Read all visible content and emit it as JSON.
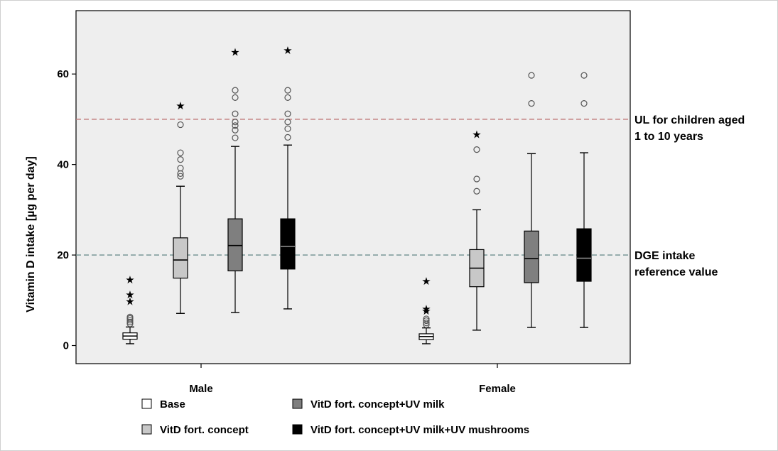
{
  "chart_data": {
    "type": "boxplot",
    "ylabel": "Vitamin D intake [µg per day]",
    "xlabel": "",
    "ylim": [
      -4,
      74
    ],
    "yticks": [
      0,
      20,
      40,
      60
    ],
    "grid": false,
    "categories": [
      "Male",
      "Female"
    ],
    "series": [
      {
        "name": "Base",
        "color": "#ffffff",
        "median_color": "#000000",
        "boxes": [
          {
            "q1": 1.4,
            "median": 2.1,
            "q3": 2.8,
            "lower_whisker": 0.4,
            "upper_whisker": 4.1,
            "outliers": [
              4.8,
              5.2,
              5.6,
              6.0,
              6.3
            ],
            "extremes": [
              9.7,
              11.2,
              14.5
            ]
          },
          {
            "q1": 1.3,
            "median": 2.0,
            "q3": 2.6,
            "lower_whisker": 0.4,
            "upper_whisker": 3.9,
            "outliers": [
              4.6,
              5.0,
              5.5,
              5.9
            ],
            "extremes": [
              7.6,
              8.1,
              14.2
            ]
          }
        ]
      },
      {
        "name": "VitD fort. concept",
        "color": "#c8c8c8",
        "median_color": "#000000",
        "boxes": [
          {
            "q1": 14.9,
            "median": 18.9,
            "q3": 23.8,
            "lower_whisker": 7.1,
            "upper_whisker": 35.2,
            "outliers": [
              37.4,
              38.0,
              39.2,
              41.1,
              42.6,
              48.8
            ],
            "extremes": [
              53.0
            ]
          },
          {
            "q1": 13.0,
            "median": 17.1,
            "q3": 21.2,
            "lower_whisker": 3.4,
            "upper_whisker": 30.0,
            "outliers": [
              34.1,
              36.8,
              43.3
            ],
            "extremes": [
              46.6
            ]
          }
        ]
      },
      {
        "name": "VitD fort. concept+UV milk",
        "color": "#7f7f7f",
        "median_color": "#000000",
        "boxes": [
          {
            "q1": 16.5,
            "median": 22.1,
            "q3": 28.0,
            "lower_whisker": 7.3,
            "upper_whisker": 44.0,
            "outliers": [
              45.9,
              47.6,
              48.6,
              49.4,
              51.2,
              54.8,
              56.4
            ],
            "extremes": [
              64.8
            ]
          },
          {
            "q1": 13.9,
            "median": 19.2,
            "q3": 25.3,
            "lower_whisker": 4.0,
            "upper_whisker": 42.4,
            "outliers": [
              53.5,
              59.7
            ],
            "extremes": []
          }
        ]
      },
      {
        "name": "VitD fort. concept+UV milk+UV mushrooms",
        "color": "#000000",
        "median_color": "#8a8a8a",
        "boxes": [
          {
            "q1": 16.9,
            "median": 21.9,
            "q3": 28.0,
            "lower_whisker": 8.1,
            "upper_whisker": 44.3,
            "outliers": [
              46.0,
              47.9,
              49.4,
              51.2,
              54.8,
              56.4
            ],
            "extremes": [
              65.2
            ]
          },
          {
            "q1": 14.2,
            "median": 19.3,
            "q3": 25.8,
            "lower_whisker": 4.0,
            "upper_whisker": 42.6,
            "outliers": [
              53.5,
              59.7
            ],
            "extremes": []
          }
        ]
      }
    ],
    "reference_lines": [
      {
        "y": 50,
        "label_lines": [
          "UL for children  aged",
          "1 to 10 years"
        ],
        "color": "#c07878"
      },
      {
        "y": 20,
        "label_lines": [
          "DGE intake",
          "reference value"
        ],
        "color": "#6f8f8f"
      }
    ],
    "legend": {
      "placement": "bottom",
      "items": [
        "Base",
        "VitD fort. concept+UV  milk",
        "VitD fort. concept",
        "VitD fort. concept+UV  milk+UV mushrooms"
      ]
    }
  }
}
